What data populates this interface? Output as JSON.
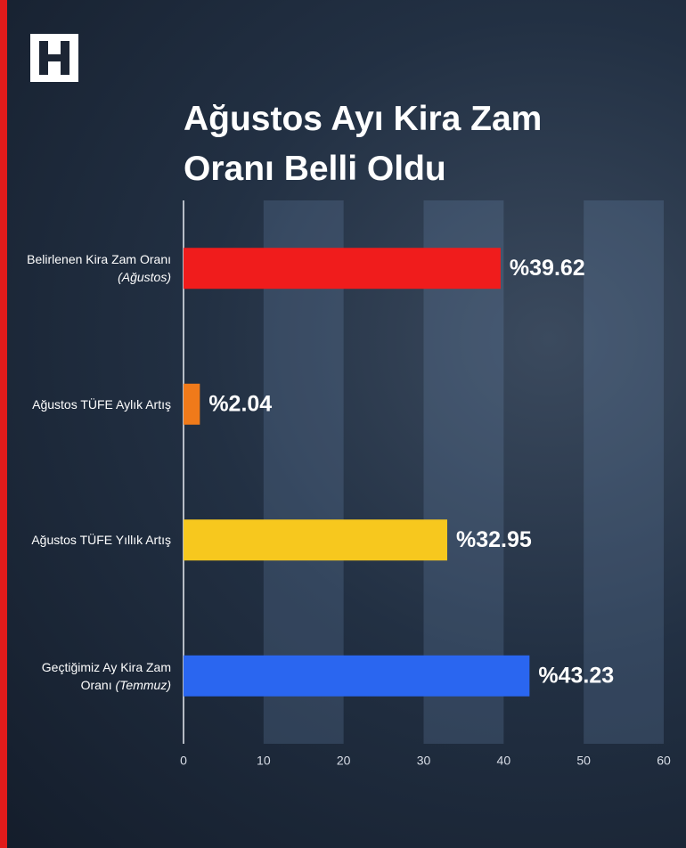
{
  "chart_data": {
    "type": "barh",
    "title": "Ağustos Ayı Kira Zam Oranı Belli Oldu",
    "categories": [
      "Belirlenen Kira Zam Oranı (Ağustos)",
      "Ağustos TÜFE Aylık Artış",
      "Ağustos TÜFE Yıllık Artış",
      "Geçtiğimiz Ay Kira Zam Oranı (Temmuz)"
    ],
    "values": [
      39.62,
      2.04,
      32.95,
      43.23
    ],
    "value_labels": [
      "%39.62",
      "%2.04",
      "%32.95",
      "%43.23"
    ],
    "colors": [
      "#f01c1c",
      "#f07a1a",
      "#f7c81e",
      "#2a66f0"
    ],
    "xlim": [
      0,
      60
    ],
    "xticks": [
      0,
      10,
      20,
      30,
      40,
      50,
      60
    ],
    "grid": true
  }
}
